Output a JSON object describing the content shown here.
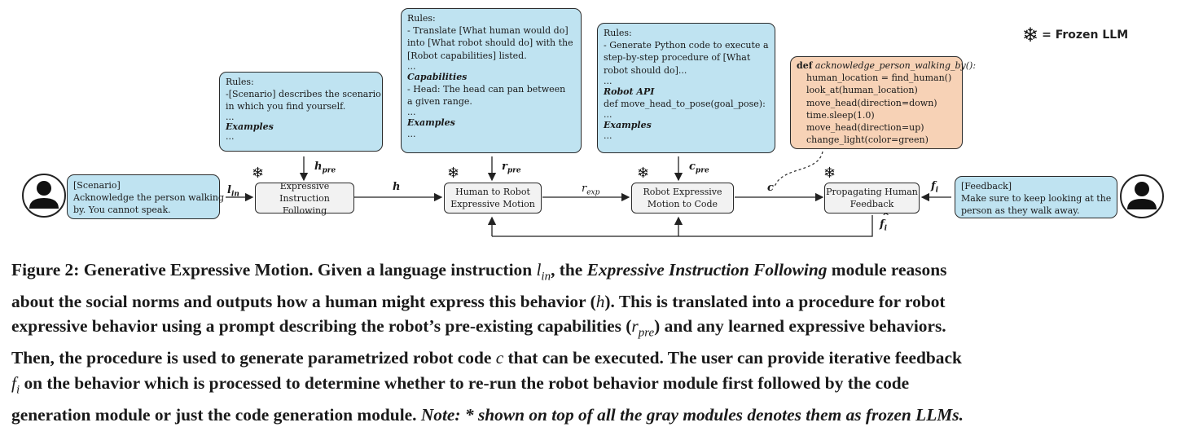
{
  "legend": {
    "frozen_label": "= Frozen LLM",
    "icon": "snowflake-icon"
  },
  "user_prompt": {
    "title": "[Scenario]",
    "lines": [
      "Acknowledge the person walking",
      "by. You cannot speak."
    ]
  },
  "feedback_prompt": {
    "title": "[Feedback]",
    "lines": [
      "Make sure to keep looking at the",
      "person as they walk away."
    ]
  },
  "rules_expressive": {
    "lines": [
      "Rules:",
      "-[Scenario] describes the scenario",
      "in which you find yourself.",
      "...",
      "Examples",
      "..."
    ]
  },
  "rules_motion": {
    "lines": [
      "Rules:",
      "- Translate [What human would do]",
      "into [What robot should do] with the",
      "[Robot capabilities] listed.",
      "...",
      "Capabilities",
      "- Head: The head can pan between",
      "a given range.",
      "...",
      "Examples",
      "..."
    ]
  },
  "rules_code": {
    "lines": [
      "Rules:",
      "- Generate Python code to execute a",
      "step-by-step procedure of [What",
      "robot should do]...",
      "...",
      "Robot API",
      "def move_head_to_pose(goal_pose):",
      "...",
      "Examples",
      "..."
    ]
  },
  "code_box": {
    "def_keyword": "def",
    "func_name": "acknowledge_person_walking_by():",
    "lines": [
      "human_location = find_human()",
      "look_at(human_location)",
      "move_head(direction=down)",
      "time.sleep(1.0)",
      "move_head(direction=up)",
      "change_light(color=green)"
    ]
  },
  "modules": {
    "expressive": [
      "Expressive Instruction",
      "Following"
    ],
    "motion": [
      "Human to Robot",
      "Expressive Motion"
    ],
    "code": [
      "Robot Expressive",
      "Motion to Code"
    ],
    "feedback": [
      "Propagating Human",
      "Feedback"
    ]
  },
  "edges": {
    "l_in": {
      "base": "l",
      "sub": "in"
    },
    "h": "h",
    "h_pre": {
      "base": "h",
      "sub": "pre"
    },
    "r_pre": {
      "base": "r",
      "sub": "pre"
    },
    "c_pre": {
      "base": "c",
      "sub": "pre"
    },
    "r_exp": {
      "base": "r",
      "sub": "exp"
    },
    "c": "c",
    "f_i": {
      "base": "f",
      "sub": "i"
    },
    "f_hat": {
      "base": "f",
      "hat": "^",
      "sub": "i"
    }
  },
  "caption": {
    "line1": {
      "a": "Figure 2: Generative Expressive Motion. Given a language instruction ",
      "l": "l",
      "lsub": "in",
      "b": ", the ",
      "it": "Expressive Instruction Following",
      "c": " module reasons"
    },
    "line2": {
      "a": "about the social norms and outputs how a human might express this behavior (",
      "h": "h",
      "b": "). This is translated into a procedure for robot"
    },
    "line3": {
      "a": "expressive behavior using a prompt describing the robot’s pre-existing capabilities (",
      "r": "r",
      "rsub": "pre",
      "b": ") and any learned expressive behaviors."
    },
    "line4": {
      "a": "Then, the procedure is used to generate parametrized robot code ",
      "c": "c",
      "b": " that can be executed. The user can provide iterative feedback"
    },
    "line5": {
      "f": "f",
      "fsub": "i",
      "a": " on the behavior which is processed to determine whether to re-run the robot behavior module first followed by the code"
    },
    "line6": {
      "a": "generation module or just the code generation module. ",
      "note": "Note: * shown on top of all the gray modules denotes them as frozen LLMs."
    }
  }
}
